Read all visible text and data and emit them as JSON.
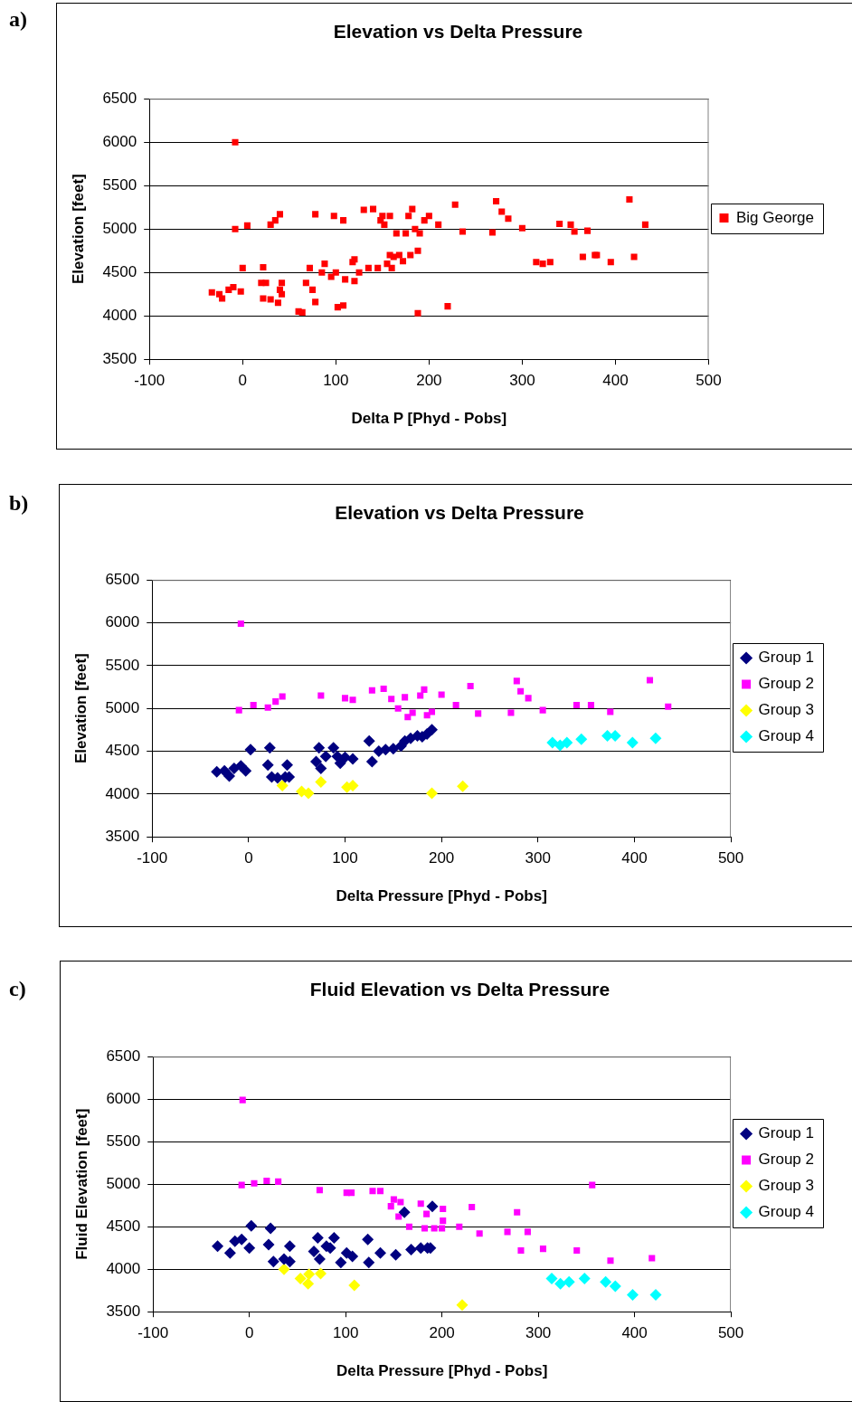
{
  "chart_data": [
    {
      "type": "scatter",
      "title": "Elevation vs Delta Pressure",
      "xlabel": "Delta P [Phyd - Pobs]",
      "ylabel": "Elevation [feet]",
      "annotations": [
        "a)"
      ],
      "xlim": [
        -100,
        500
      ],
      "xticks": [
        -100,
        0,
        100,
        200,
        300,
        400,
        500
      ],
      "ylim": [
        3500,
        6500
      ],
      "yticks": [
        3500,
        4000,
        4500,
        5000,
        5500,
        6000,
        6500
      ],
      "grid": "y",
      "legend": "right",
      "series": [
        {
          "name": "Big George",
          "color": "#ff0000",
          "marker": "square",
          "x": [
            -33,
            -25,
            -22,
            -15,
            -10,
            -8,
            -8,
            -2,
            0,
            5,
            20,
            22,
            22,
            25,
            30,
            30,
            35,
            38,
            40,
            42,
            42,
            40,
            60,
            64,
            68,
            72,
            75,
            78,
            78,
            85,
            88,
            95,
            98,
            100,
            102,
            108,
            108,
            110,
            118,
            120,
            120,
            125,
            130,
            135,
            140,
            145,
            148,
            150,
            152,
            155,
            158,
            158,
            160,
            162,
            165,
            168,
            172,
            175,
            178,
            180,
            182,
            185,
            188,
            188,
            190,
            195,
            200,
            210,
            220,
            228,
            236,
            268,
            272,
            278,
            285,
            300,
            315,
            322,
            330,
            340,
            352,
            356,
            365,
            370,
            378,
            380,
            395,
            415,
            420,
            432
          ],
          "values": [
            4270,
            4250,
            4200,
            4300,
            4330,
            6000,
            5000,
            4280,
            4550,
            5040,
            4380,
            4560,
            4200,
            4380,
            4190,
            5050,
            5100,
            4150,
            5170,
            4250,
            4380,
            4300,
            4050,
            4040,
            4380,
            4550,
            4300,
            4160,
            5170,
            4500,
            4600,
            4450,
            5150,
            4500,
            4100,
            4120,
            5100,
            4420,
            4620,
            4650,
            4400,
            4500,
            5220,
            4550,
            5230,
            4550,
            5100,
            5150,
            5050,
            4600,
            4700,
            5150,
            4550,
            4680,
            4950,
            4700,
            4630,
            4950,
            5150,
            4700,
            5230,
            5000,
            4750,
            4030,
            4950,
            5100,
            5150,
            5050,
            4110,
            5280,
            4970,
            4960,
            5320,
            5200,
            5120,
            5010,
            4620,
            4600,
            4620,
            5060,
            5050,
            4970,
            4680,
            4980,
            4700,
            4700,
            4620,
            5340,
            4680,
            5050
          ]
        }
      ]
    },
    {
      "type": "scatter",
      "title": "Elevation vs Delta Pressure",
      "xlabel": "Delta Pressure [Phyd - Pobs]",
      "ylabel": "Elevation [feet]",
      "annotations": [
        "b)"
      ],
      "xlim": [
        -100,
        500
      ],
      "xticks": [
        -100,
        0,
        100,
        200,
        300,
        400,
        500
      ],
      "ylim": [
        3500,
        6500
      ],
      "yticks": [
        3500,
        4000,
        4500,
        5000,
        5500,
        6000,
        6500
      ],
      "grid": "y",
      "legend": "right",
      "series": [
        {
          "name": "Group 1",
          "color": "#000080",
          "marker": "diamond",
          "x": [
            -33,
            -25,
            -20,
            -15,
            -8,
            -3,
            2,
            20,
            22,
            24,
            30,
            38,
            40,
            42,
            70,
            73,
            75,
            80,
            88,
            92,
            95,
            100,
            108,
            125,
            128,
            135,
            142,
            150,
            158,
            162,
            168,
            175,
            180,
            185,
            190
          ],
          "values": [
            4260,
            4270,
            4210,
            4300,
            4330,
            4270,
            4520,
            4340,
            4540,
            4200,
            4190,
            4200,
            4340,
            4200,
            4380,
            4540,
            4300,
            4440,
            4540,
            4440,
            4360,
            4430,
            4410,
            4620,
            4380,
            4500,
            4520,
            4530,
            4560,
            4620,
            4650,
            4680,
            4670,
            4700,
            4750
          ]
        },
        {
          "name": "Group 2",
          "color": "#ff00ff",
          "marker": "square",
          "x": [
            -8,
            -10,
            5,
            20,
            28,
            35,
            75,
            100,
            108,
            128,
            140,
            148,
            155,
            162,
            165,
            170,
            178,
            182,
            185,
            190,
            200,
            215,
            230,
            238,
            272,
            278,
            282,
            290,
            305,
            340,
            355,
            375,
            416,
            435
          ],
          "values": [
            5990,
            4980,
            5040,
            5010,
            5080,
            5140,
            5150,
            5120,
            5100,
            5210,
            5230,
            5110,
            5000,
            5130,
            4900,
            4950,
            5150,
            5220,
            4920,
            4960,
            5160,
            5040,
            5260,
            4940,
            4950,
            5320,
            5200,
            5120,
            4980,
            5040,
            5040,
            4960,
            5330,
            5020
          ]
        },
        {
          "name": "Group 3",
          "color": "#ffff00",
          "marker": "diamond",
          "x": [
            35,
            55,
            62,
            75,
            102,
            108,
            190,
            222
          ],
          "values": [
            4100,
            4030,
            4010,
            4140,
            4080,
            4100,
            4010,
            4090
          ]
        },
        {
          "name": "Group 4",
          "color": "#00ffff",
          "marker": "diamond",
          "x": [
            315,
            323,
            330,
            345,
            372,
            380,
            398,
            422
          ],
          "values": [
            4600,
            4570,
            4600,
            4640,
            4680,
            4680,
            4600,
            4650
          ]
        }
      ]
    },
    {
      "type": "scatter",
      "title": "Fluid Elevation vs Delta Pressure",
      "xlabel": "Delta Pressure [Phyd - Pobs]",
      "ylabel": "Fluid Elevation [feet]",
      "annotations": [
        "c)"
      ],
      "xlim": [
        -100,
        500
      ],
      "xticks": [
        -100,
        0,
        100,
        200,
        300,
        400,
        500
      ],
      "ylim": [
        3500,
        6500
      ],
      "yticks": [
        3500,
        4000,
        4500,
        5000,
        5500,
        6000,
        6500
      ],
      "grid": "y",
      "legend": "right",
      "series": [
        {
          "name": "Group 1",
          "color": "#000080",
          "marker": "diamond",
          "x": [
            -33,
            -20,
            -15,
            -8,
            0,
            2,
            22,
            20,
            25,
            36,
            42,
            42,
            71,
            67,
            73,
            80,
            88,
            84,
            95,
            101,
            107,
            123,
            124,
            136,
            152,
            161,
            168,
            178,
            188,
            190,
            185
          ],
          "values": [
            4270,
            4190,
            4330,
            4350,
            4250,
            4510,
            4480,
            4290,
            4090,
            4120,
            4270,
            4090,
            4370,
            4210,
            4120,
            4270,
            4370,
            4250,
            4080,
            4190,
            4150,
            4350,
            4080,
            4190,
            4170,
            4670,
            4230,
            4250,
            4250,
            4740,
            4250
          ]
        },
        {
          "name": "Group 2",
          "color": "#ff00ff",
          "marker": "square",
          "x": [
            -8,
            -7,
            5,
            18,
            30,
            73,
            101,
            106,
            128,
            136,
            150,
            157,
            147,
            155,
            178,
            184,
            166,
            182,
            192,
            201,
            201,
            200,
            218,
            231,
            239,
            268,
            278,
            289,
            282,
            305,
            340,
            356,
            375,
            418
          ],
          "values": [
            4990,
            5990,
            5010,
            5040,
            5030,
            4930,
            4900,
            4900,
            4920,
            4920,
            4820,
            4790,
            4740,
            4620,
            4770,
            4650,
            4500,
            4480,
            4480,
            4710,
            4570,
            4480,
            4500,
            4730,
            4420,
            4440,
            4670,
            4440,
            4220,
            4240,
            4220,
            4990,
            4100,
            4130
          ]
        },
        {
          "name": "Group 3",
          "color": "#ffff00",
          "marker": "diamond",
          "x": [
            36,
            53,
            62,
            61,
            74,
            109,
            221
          ],
          "values": [
            4000,
            3890,
            3940,
            3830,
            3950,
            3810,
            3580
          ]
        },
        {
          "name": "Group 4",
          "color": "#00ffff",
          "marker": "diamond",
          "x": [
            314,
            323,
            332,
            348,
            370,
            380,
            398,
            422
          ],
          "values": [
            3890,
            3830,
            3850,
            3890,
            3850,
            3800,
            3700,
            3700
          ]
        }
      ]
    }
  ]
}
